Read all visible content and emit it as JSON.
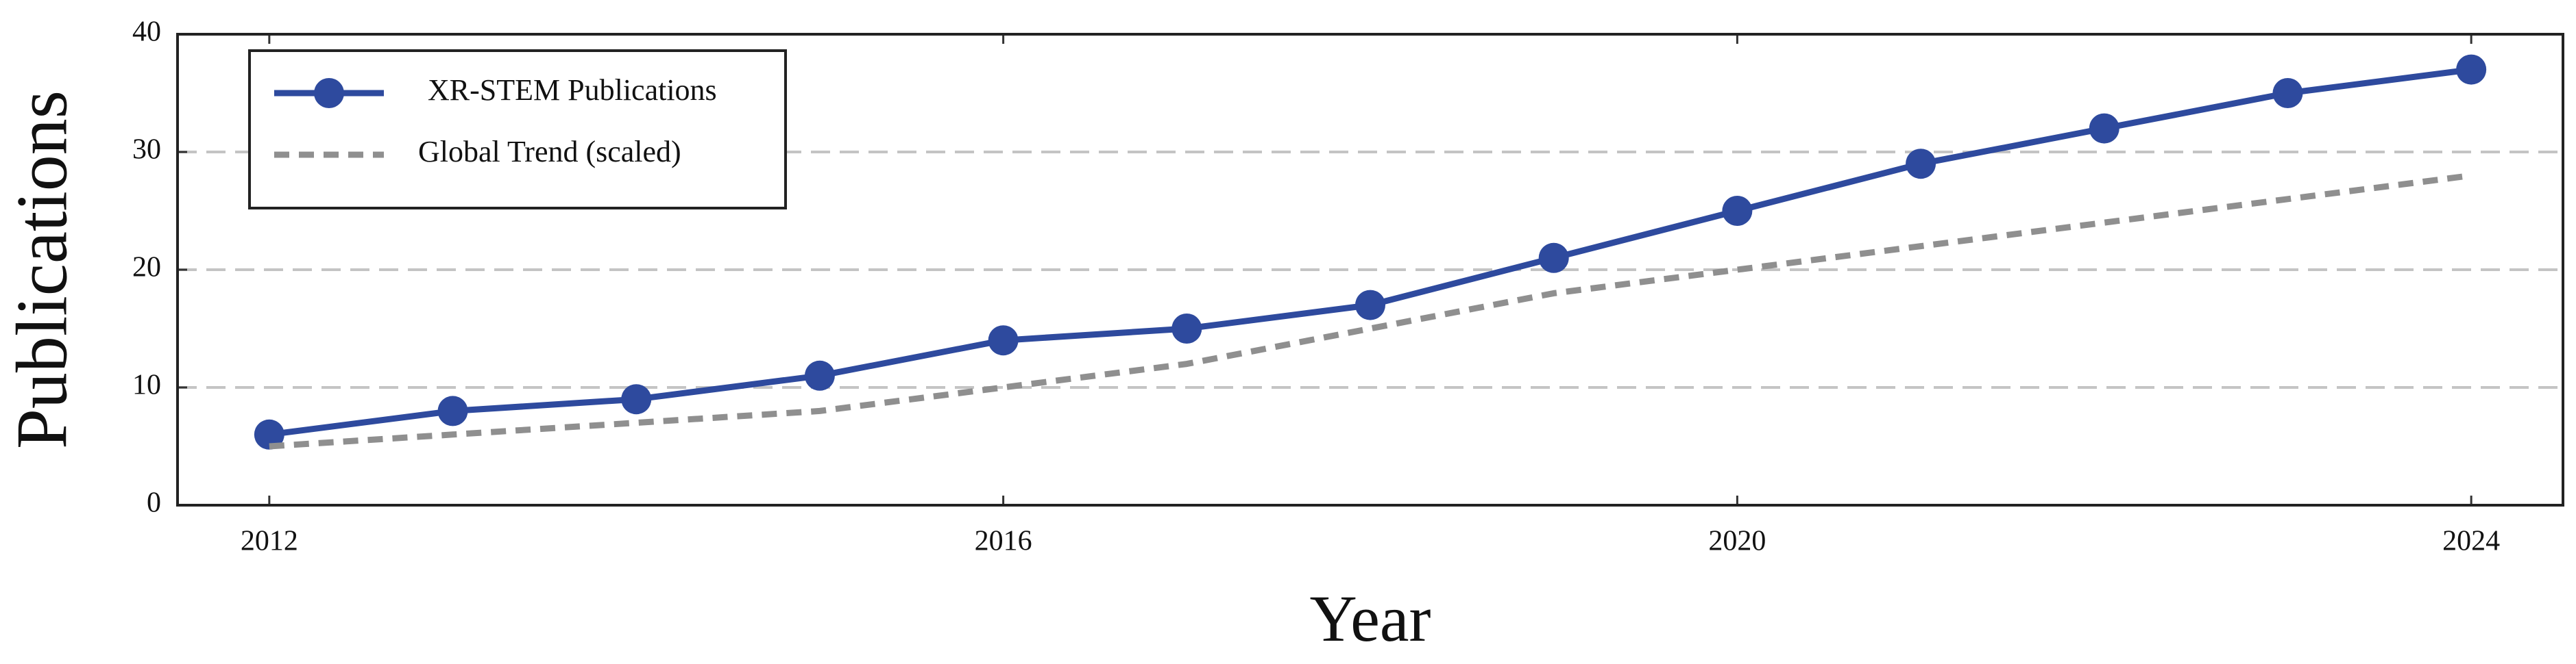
{
  "chart_data": {
    "type": "line",
    "x_label": "Year",
    "y_label": "Publications",
    "x": [
      2012,
      2013,
      2014,
      2015,
      2016,
      2017,
      2018,
      2019,
      2020,
      2021,
      2022,
      2023,
      2024
    ],
    "series": [
      {
        "name": "XR-STEM Publications",
        "color": "#2e4a9e",
        "marker": true,
        "dashed": false,
        "values": [
          6,
          8,
          9,
          11,
          14,
          15,
          17,
          21,
          25,
          29,
          32,
          35,
          37
        ]
      },
      {
        "name": "Global Trend (scaled)",
        "color": "#8f8f8f",
        "marker": false,
        "dashed": true,
        "values": [
          5,
          6,
          7,
          8,
          10,
          12,
          15,
          18,
          20,
          22,
          24,
          26,
          28
        ]
      }
    ],
    "xlim": [
      2011.5,
      2024.5
    ],
    "ylim": [
      0,
      40
    ],
    "xticks": [
      2012,
      2016,
      2020,
      2024
    ],
    "yticks": [
      0,
      10,
      20,
      30,
      40
    ],
    "grid": true,
    "legend": "upper left"
  }
}
